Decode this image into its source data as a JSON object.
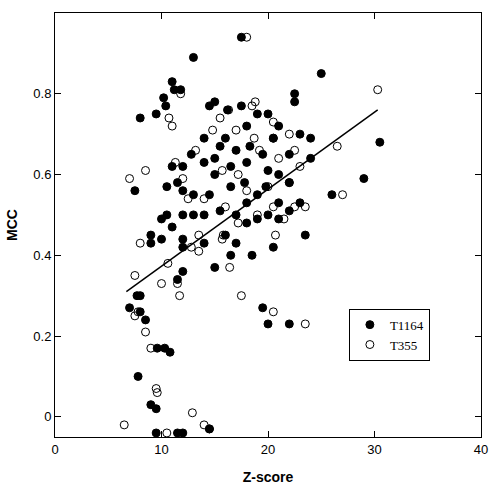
{
  "chart_data": {
    "type": "scatter",
    "xlabel": "Z-score",
    "ylabel": "MCC",
    "xlim": [
      0,
      40
    ],
    "ylim": [
      -0.05,
      1.0
    ],
    "xticks": [
      0,
      10,
      20,
      30,
      40
    ],
    "yticks": [
      0,
      0.2,
      0.4,
      0.6,
      0.8
    ],
    "grid": false,
    "legend": "lower right",
    "series": [
      {
        "name": "T1164",
        "type": "scatter",
        "marker": "filled",
        "color": "#000000",
        "x": [
          13,
          17.5,
          11,
          10.2,
          10.4,
          8,
          9.5,
          11.2,
          11.8,
          25,
          22.5,
          22.5,
          14.5,
          15,
          16.2,
          17.5,
          19,
          20,
          18,
          21,
          23,
          24,
          20.5,
          16,
          14,
          15.5,
          18.3,
          17,
          19.5,
          22,
          24,
          12.8,
          11,
          12,
          14,
          15,
          16.5,
          18,
          20,
          21,
          22,
          17.8,
          16.5,
          15,
          14.5,
          13,
          12,
          11.5,
          10.5,
          7.5,
          19,
          19.8,
          21,
          23,
          26,
          29,
          30.5,
          22,
          20,
          19,
          18,
          17,
          15.5,
          14,
          13,
          12,
          10.5,
          10,
          9,
          9,
          10,
          11,
          12,
          12,
          14,
          15,
          16.5,
          18.5,
          20.5,
          12,
          11.5,
          7,
          8,
          8.5,
          7.7,
          8,
          19.5,
          20,
          22,
          7.8,
          9.6,
          10.3,
          10.8,
          9,
          9.5,
          9.5,
          12,
          11.5,
          14.5,
          16,
          17,
          21,
          18,
          23.5
        ],
        "y": [
          0.89,
          0.94,
          0.83,
          0.79,
          0.77,
          0.74,
          0.75,
          0.81,
          0.81,
          0.85,
          0.8,
          0.78,
          0.77,
          0.78,
          0.76,
          0.77,
          0.75,
          0.75,
          0.72,
          0.72,
          0.7,
          0.69,
          0.69,
          0.69,
          0.69,
          0.67,
          0.67,
          0.66,
          0.65,
          0.65,
          0.64,
          0.65,
          0.62,
          0.62,
          0.63,
          0.64,
          0.62,
          0.63,
          0.61,
          0.6,
          0.58,
          0.58,
          0.57,
          0.6,
          0.55,
          0.55,
          0.56,
          0.58,
          0.57,
          0.56,
          0.55,
          0.57,
          0.53,
          0.53,
          0.55,
          0.59,
          0.68,
          0.51,
          0.5,
          0.49,
          0.48,
          0.5,
          0.51,
          0.5,
          0.5,
          0.5,
          0.5,
          0.49,
          0.45,
          0.43,
          0.44,
          0.47,
          0.44,
          0.42,
          0.43,
          0.37,
          0.4,
          0.4,
          0.42,
          0.36,
          0.34,
          0.27,
          0.26,
          0.24,
          0.3,
          0.3,
          0.27,
          0.23,
          0.23,
          0.1,
          0.17,
          0.17,
          0.16,
          0.03,
          0.02,
          -0.04,
          -0.04,
          -0.04,
          -0.03,
          0.45,
          0.43,
          0.49,
          0.53,
          0.45
        ]
      },
      {
        "name": "T355",
        "type": "scatter",
        "marker": "open",
        "color": "#000000",
        "x": [
          18,
          30.3,
          11.8,
          18.8,
          18.5,
          16.3,
          10.7,
          11,
          20.5,
          22,
          20.5,
          13.2,
          18.7,
          17,
          15.5,
          14.8,
          19.2,
          21,
          22.5,
          26.5,
          8.5,
          7,
          11.3,
          12,
          15.7,
          17.2,
          18,
          20,
          22,
          23,
          27,
          12.5,
          14,
          16,
          17.2,
          19,
          20.5,
          22.5,
          23.5,
          21.5,
          15.8,
          15.7,
          13.5,
          13.5,
          16.4,
          20.7,
          12.8,
          8,
          7.5,
          10.6,
          10,
          11.7,
          11.5,
          17.5,
          20.5,
          23.5,
          7.8,
          7.5,
          8.5,
          9,
          9.5,
          9.6,
          6.5,
          10.5,
          12.9,
          14,
          14.5
        ],
        "y": [
          0.94,
          0.81,
          0.8,
          0.78,
          0.77,
          0.76,
          0.74,
          0.72,
          0.73,
          0.7,
          0.69,
          0.66,
          0.69,
          0.71,
          0.74,
          0.71,
          0.66,
          0.64,
          0.66,
          0.67,
          0.61,
          0.59,
          0.63,
          0.59,
          0.61,
          0.6,
          0.56,
          0.57,
          0.58,
          0.62,
          0.55,
          0.54,
          0.54,
          0.52,
          0.48,
          0.5,
          0.52,
          0.52,
          0.52,
          0.49,
          0.45,
          0.44,
          0.45,
          0.41,
          0.37,
          0.45,
          0.42,
          0.43,
          0.35,
          0.38,
          0.33,
          0.3,
          0.33,
          0.3,
          0.26,
          0.23,
          0.26,
          0.25,
          0.21,
          0.17,
          0.07,
          0.06,
          -0.02,
          -0.04,
          0.01,
          -0.02,
          -0.03
        ]
      },
      {
        "type": "line",
        "line_style": "solid",
        "color": "#000000",
        "x": [
          6.7,
          30.3
        ],
        "y": [
          0.31,
          0.76
        ]
      }
    ]
  }
}
